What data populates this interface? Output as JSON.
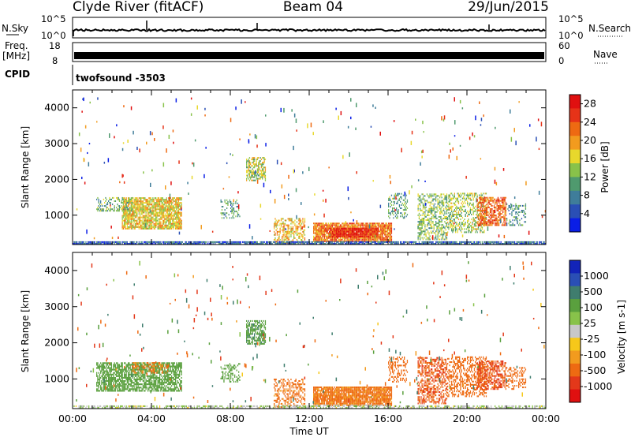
{
  "header": {
    "station": "Clyde River (fitACF)",
    "beam": "Beam 04",
    "date": "29/Jun/2015"
  },
  "top_panels": {
    "nsky_label": "N.Sky",
    "nsky_ticks": [
      "10^5",
      "10^0"
    ],
    "nsearch_label": "N.Search",
    "freq_label_line1": "Freq.",
    "freq_label_line2": "[MHz]",
    "freq_ticks": [
      "18",
      "8"
    ],
    "nave_label": "Nave",
    "nave_ticks": [
      "60",
      "0"
    ],
    "cpid_label": "CPID",
    "cpid_value": "twofsound -3503"
  },
  "colors": {
    "power_scale": [
      "#0a1ee6",
      "#2a4fb5",
      "#3f7d9a",
      "#4f9a6e",
      "#88c24a",
      "#e8d82c",
      "#f29b1e",
      "#ee6a12",
      "#e63318",
      "#e01010"
    ],
    "velocity_scale": [
      "#e01010",
      "#e3381a",
      "#ee6a12",
      "#f29b1e",
      "#f6c81a",
      "#c8c8c8",
      "#88c24a",
      "#5aa03e",
      "#3f7d6e",
      "#2a4fb5",
      "#1224b8"
    ],
    "ground_scatter": "#c3c3c3"
  },
  "chart_data": [
    {
      "type": "heatmap",
      "name": "power",
      "ylabel": "Slant Range [km]",
      "xlabel": "",
      "colorbar_label": "Power [dB]",
      "colorbar_ticks": [
        "4",
        "8",
        "12",
        "16",
        "20",
        "24",
        "28"
      ],
      "clim": [
        0,
        30
      ],
      "xlim": [
        0,
        24
      ],
      "ylim": [
        180,
        4500
      ],
      "yticks": [
        "1000",
        "2000",
        "3000",
        "4000"
      ],
      "xtick_labels": [],
      "regions": [
        {
          "t": [
            2.5,
            5.5
          ],
          "r": [
            600,
            1500
          ],
          "v": 17,
          "d": 0.8
        },
        {
          "t": [
            1.2,
            3.0
          ],
          "r": [
            1100,
            1500
          ],
          "v": 11,
          "d": 0.4
        },
        {
          "t": [
            7.5,
            8.5
          ],
          "r": [
            900,
            1400
          ],
          "v": 10,
          "d": 0.3
        },
        {
          "t": [
            8.8,
            9.8
          ],
          "r": [
            1950,
            2600
          ],
          "v": 15,
          "d": 0.6
        },
        {
          "t": [
            10.2,
            11.8
          ],
          "r": [
            200,
            900
          ],
          "v": 18,
          "d": 0.45
        },
        {
          "t": [
            12.2,
            16.2
          ],
          "r": [
            250,
            750
          ],
          "v": 22,
          "d": 0.9
        },
        {
          "t": [
            13.0,
            15.5
          ],
          "r": [
            380,
            620
          ],
          "v": 27,
          "d": 0.9
        },
        {
          "t": [
            16.0,
            17.0
          ],
          "r": [
            900,
            1600
          ],
          "v": 11,
          "d": 0.35
        },
        {
          "t": [
            17.5,
            19.0
          ],
          "r": [
            300,
            1600
          ],
          "v": 13,
          "d": 0.5
        },
        {
          "t": [
            19.0,
            21.0
          ],
          "r": [
            500,
            1600
          ],
          "v": 14,
          "d": 0.45
        },
        {
          "t": [
            20.5,
            22.0
          ],
          "r": [
            700,
            1500
          ],
          "v": 23,
          "d": 0.65
        },
        {
          "t": [
            22.0,
            23.0
          ],
          "r": [
            700,
            1300
          ],
          "v": 9,
          "d": 0.3
        },
        {
          "t": [
            0.0,
            24.0
          ],
          "r": [
            180,
            260
          ],
          "v": 6,
          "d": 0.85
        }
      ]
    },
    {
      "type": "heatmap",
      "name": "velocity",
      "ylabel": "Slant Range [km]",
      "xlabel": "Time UT",
      "colorbar_label": "Velocity [m s-1]",
      "colorbar_ticks": [
        "-1000",
        "-500",
        "-100",
        "-25",
        "25",
        "100",
        "500",
        "1000"
      ],
      "clim": [
        -1200,
        1200
      ],
      "xlim": [
        0,
        24
      ],
      "ylim": [
        180,
        4500
      ],
      "yticks": [
        "1000",
        "2000",
        "3000",
        "4000"
      ],
      "xtick_labels": [
        "00:00",
        "04:00",
        "08:00",
        "12:00",
        "16:00",
        "20:00",
        "00:00"
      ],
      "regions": [
        {
          "t": [
            1.2,
            5.5
          ],
          "r": [
            650,
            1450
          ],
          "v": 250,
          "d": 0.7
        },
        {
          "t": [
            3.0,
            4.8
          ],
          "r": [
            1150,
            1450
          ],
          "v": -120,
          "d": 0.35
        },
        {
          "t": [
            7.5,
            8.5
          ],
          "r": [
            900,
            1400
          ],
          "v": 300,
          "d": 0.3
        },
        {
          "t": [
            8.8,
            9.8
          ],
          "r": [
            1950,
            2600
          ],
          "v": 400,
          "d": 0.6
        },
        {
          "t": [
            10.2,
            11.8
          ],
          "r": [
            200,
            1000
          ],
          "v": -150,
          "d": 0.45
        },
        {
          "t": [
            12.2,
            16.2
          ],
          "r": [
            250,
            750
          ],
          "v": -130,
          "d": 0.9
        },
        {
          "t": [
            16.0,
            17.0
          ],
          "r": [
            900,
            1600
          ],
          "v": -250,
          "d": 0.35
        },
        {
          "t": [
            17.5,
            19.0
          ],
          "r": [
            300,
            1600
          ],
          "v": -450,
          "d": 0.5
        },
        {
          "t": [
            19.0,
            21.0
          ],
          "r": [
            500,
            1600
          ],
          "v": -300,
          "d": 0.45
        },
        {
          "t": [
            20.5,
            22.0
          ],
          "r": [
            700,
            1500
          ],
          "v": -500,
          "d": 0.6
        },
        {
          "t": [
            22.0,
            23.0
          ],
          "r": [
            700,
            1300
          ],
          "v": -200,
          "d": 0.3
        },
        {
          "t": [
            0.0,
            24.0
          ],
          "r": [
            180,
            260
          ],
          "v": 60,
          "d": 0.55
        }
      ]
    }
  ]
}
